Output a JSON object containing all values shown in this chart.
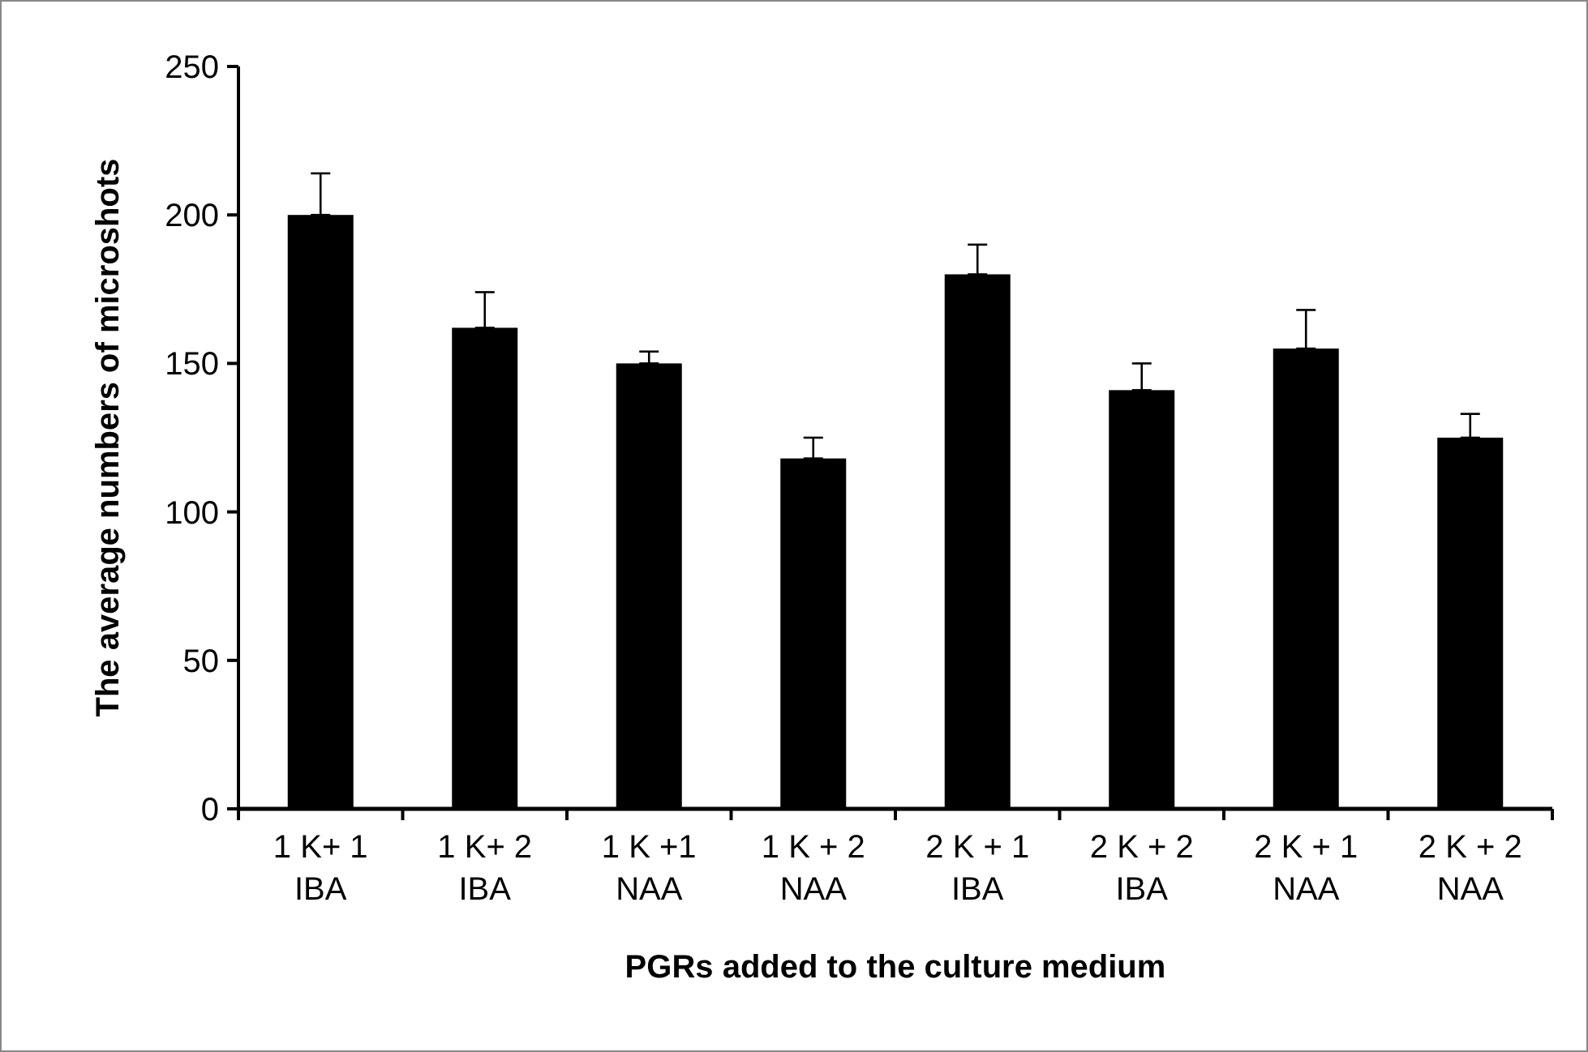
{
  "chart_data": {
    "type": "bar",
    "xlabel": "PGRs added to the culture medium",
    "ylabel": "The average numbers of microshots",
    "categories": [
      "1 K+ 1\nIBA",
      "1 K+ 2\nIBA",
      "1 K +1\nNAA",
      "1 K + 2\nNAA",
      "2 K + 1\nIBA",
      "2 K + 2\nIBA",
      "2 K + 1\nNAA",
      "2 K + 2\nNAA"
    ],
    "values": [
      200,
      162,
      150,
      118,
      180,
      141,
      155,
      125
    ],
    "errors": [
      [
        200,
        214
      ],
      [
        162,
        174
      ],
      [
        150,
        154
      ],
      [
        118,
        125
      ],
      [
        180,
        190
      ],
      [
        141,
        150
      ],
      [
        155,
        168
      ],
      [
        125,
        133
      ]
    ],
    "color": "#000000",
    "ylim": [
      0,
      250
    ],
    "yticks": [
      0,
      50,
      100,
      150,
      200,
      250
    ],
    "grid": false
  }
}
